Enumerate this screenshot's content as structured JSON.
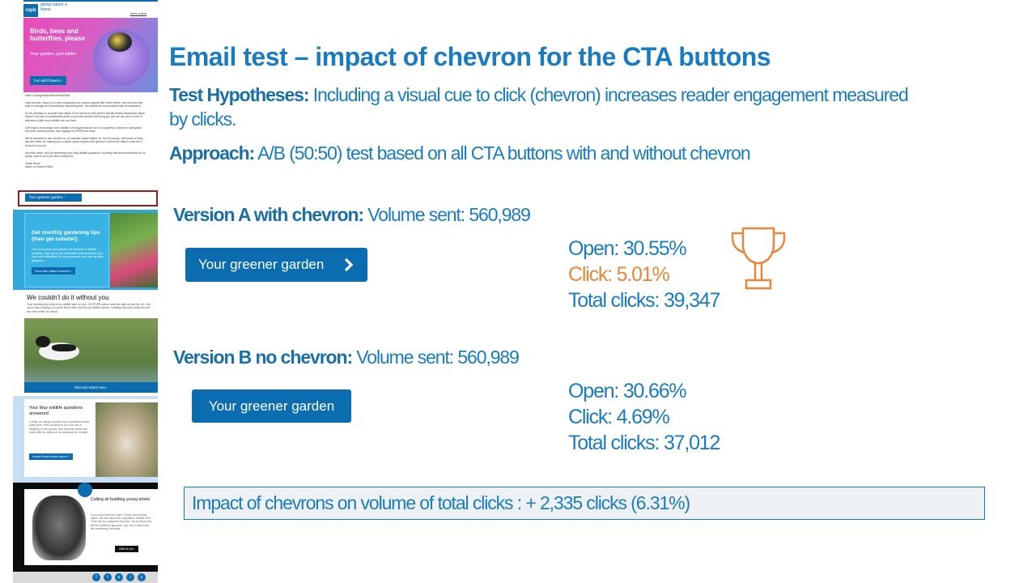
{
  "slide": {
    "title": "Email test – impact of chevron for the CTA buttons",
    "hypothesis_label": "Test Hypotheses:",
    "hypothesis_text": " Including a visual cue to click (chevron) increases reader engagement measured by clicks.",
    "approach_label": "Approach:",
    "approach_text": " A/B (50:50) test based on all CTA buttons with and without chevron",
    "version_a": {
      "label": "Version A with chevron:",
      "volume": " Volume sent: 560,989",
      "button_label": "Your greener garden",
      "open": "Open: 30.55%",
      "click": "Click: 5.01%",
      "total_clicks": "Total clicks: 39,347"
    },
    "version_b": {
      "label": "Version B no chevron:",
      "volume": " Volume sent: 560,989",
      "button_label": "Your greener garden",
      "open": "Open: 30.66%",
      "click": "Click: 4.69%",
      "total_clicks": "Total clicks: 37,012"
    },
    "impact": "Impact of chevrons on volume of total clicks : + 2,335 clicks (6.31%)",
    "colors": {
      "accent": "#1a7cbf",
      "button": "#0b6db0",
      "winner": "#e8873a",
      "highlight_box": "#9b1c1c"
    }
  },
  "email": {
    "logo": "rspb",
    "logo_text": "giving nature a home",
    "view_online": "View online",
    "hero_title": "Birds, bees and butterflies, please",
    "hero_subtitle": "Your garden, just wilder",
    "hero_button": "Fun with flowers",
    "greeting": "Hello CoolingReaderMemberNoStaff,",
    "para1": "Last summer, many of us were treasuring our outdoor spaces like never before. Not only did they help us through an extraordinary harrowing time, the wildlife we encountered was an inspiration.",
    "para2": "So it's perhaps no surprise that nature is the theme for this week's Mental Health Awareness Week. Nature can have a remarkable power to provide comfort and bring joy, and we can all do more to welcome a little more wildlife into our lives.",
    "para3": "One way to encourage more wildlife is through what we do in our gardens, balconies, backyards and even window boxes. And happily, the RSPB can help!",
    "para4": "We've launched a new section on our website called Nature on Your Doorstep, with loads of easy tips and tricks for making your outdoor space happier and greener. A boost for nature could be a boost for you too!",
    "para5": "Also this week, we'll be answering your May wildlife questions, including that annual dilemma for so many: what to do if you find a baby bird.",
    "signoff": "Jamie Rowe",
    "signoff_role": "Notes on Nature Editor",
    "cta": "Your greener garden",
    "garden_title": "Get monthly gardening tips (then get outside!)",
    "garden_text": "This is the year your garden can become a wildlife paradise. Sign up for our newsletter and we'll show you how, with inspiration for every season, and step-by-step guidance.",
    "garden_button": "Your own nature reserve",
    "avocet_title": "We couldn't do it without you",
    "avocet_text": "Your membership helps keep wildlife safe on over 200 RSPB nature reserves right across the UK. But you're also helping us to grow these sites and link up wildlife havens, creating improved networks that are even better for nature.",
    "avocet_button": "Discover what's new",
    "may_title": "Your May wildlife questions answered",
    "may_text": "In May, we always receive lots of questions about baby birds. Find out what to do if you see a fledgling on the ground, and discover which bird looks after its chicks for an amazing five months.",
    "may_button": "Leave those chicks alone!",
    "dark_title": "Calling all budding young artists",
    "dark_text": "If you know someone under 19 who loves art and nature, tell them about our competition, WildArt 2021. There are two categories this year: one for those who like the traditional approach, and one for those who like something a bit wilder.",
    "dark_button": "Wild at art",
    "social": [
      "f",
      "t",
      "p",
      "i",
      "y"
    ]
  }
}
